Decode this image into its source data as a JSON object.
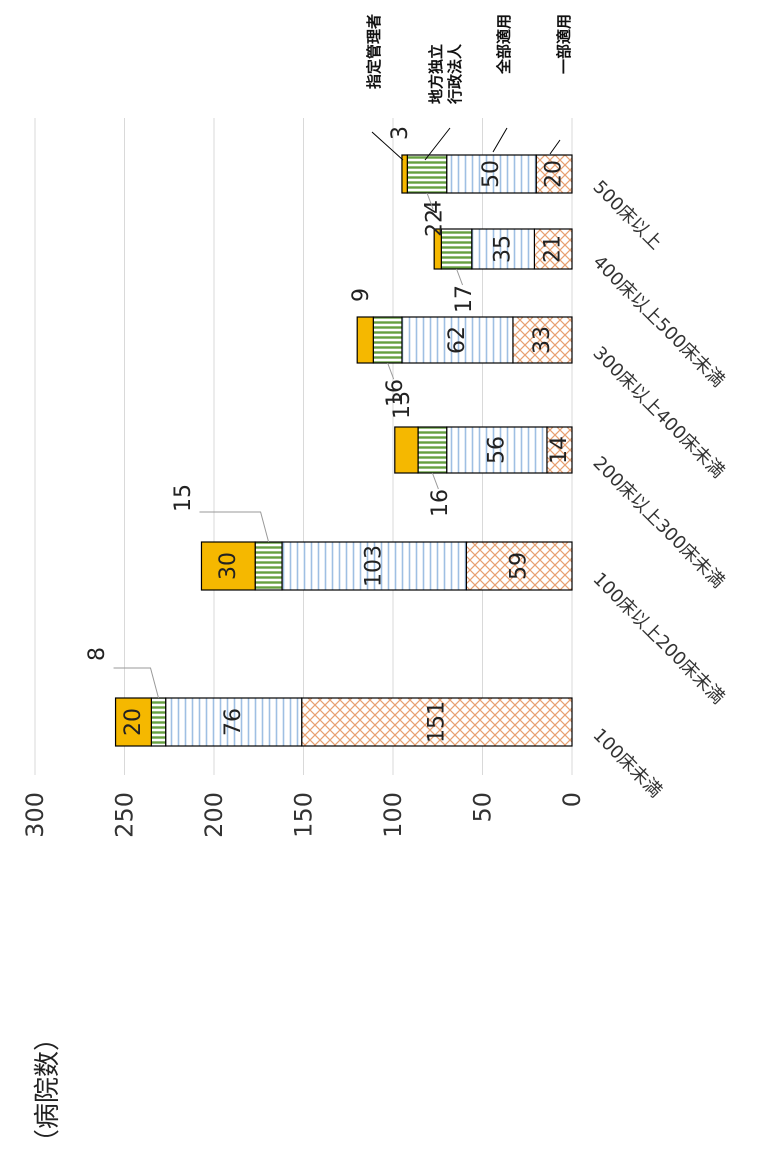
{
  "unit_label": "（病院数）",
  "colors": {
    "ichibu": "#e8a070",
    "zenbu": "#9fbfe3",
    "dokuritsu": "#66a040",
    "shitei": "#f5b800",
    "grid": "#d9d9d9",
    "border": "#000000",
    "leader": "#999999"
  },
  "chart_data": {
    "type": "bar",
    "orientation": "stacked-horizontal (rotated page)",
    "ylabel": "（病院数）",
    "ylim": [
      0,
      300
    ],
    "yticks": [
      0,
      50,
      100,
      150,
      200,
      250,
      300
    ],
    "grid": true,
    "legend_placement": "right of bar (labels with leader lines)",
    "categories": [
      "100床未満",
      "100床以上200床未満",
      "200床以上300床未満",
      "300床以上400床未満",
      "400床以上500床未満",
      "500床以上"
    ],
    "series": [
      {
        "name": "一部適用",
        "values": [
          151,
          59,
          14,
          33,
          21,
          20
        ]
      },
      {
        "name": "全部適用",
        "values": [
          76,
          103,
          56,
          62,
          35,
          50
        ]
      },
      {
        "name": "地方独立行政法人",
        "values": [
          8,
          15,
          16,
          16,
          17,
          22
        ]
      },
      {
        "name": "指定管理者",
        "values": [
          20,
          30,
          13,
          9,
          4,
          3
        ]
      }
    ]
  },
  "legend": {
    "ichibu": "一部適用",
    "zenbu": "全部適用",
    "dokuritsu_line1": "地方独立",
    "dokuritsu_line2": "行政法人",
    "shitei": "指定管理者"
  }
}
